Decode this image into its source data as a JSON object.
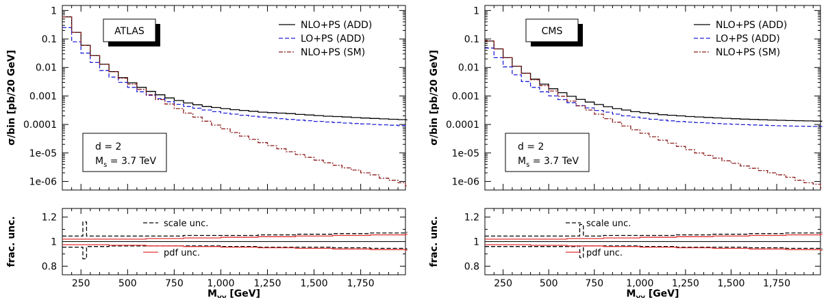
{
  "chart_data": [
    {
      "type": "line",
      "experiment": "ATLAS",
      "ylabel": "σ/bin [pb/20 GeV]",
      "yscale": "log",
      "ylim": [
        5e-07,
        1.5
      ],
      "xlim": [
        150,
        1990
      ],
      "grid": false,
      "legend_position": "top-right",
      "yticks": [
        "1",
        "0.1",
        "0.01",
        "0.001",
        "0.0001",
        "1e-05",
        "1e-06"
      ],
      "series": [
        {
          "name": "NLO+PS (ADD)",
          "color": "#000000",
          "style": "solid",
          "x": [
            150,
            200,
            250,
            300,
            350,
            400,
            450,
            500,
            550,
            600,
            650,
            700,
            750,
            800,
            850,
            900,
            950,
            1000,
            1050,
            1100,
            1150,
            1200,
            1250,
            1300,
            1350,
            1400,
            1450,
            1500,
            1550,
            1600,
            1650,
            1700,
            1750,
            1800,
            1850,
            1900,
            1950,
            1990
          ],
          "y": [
            0.6,
            0.17,
            0.06,
            0.026,
            0.013,
            0.0072,
            0.0044,
            0.0029,
            0.002,
            0.00145,
            0.0011,
            0.00085,
            0.00069,
            0.00057,
            0.00049,
            0.00043,
            0.00039,
            0.00036,
            0.00033,
            0.00031,
            0.00029,
            0.00027,
            0.00026,
            0.00025,
            0.00024,
            0.000225,
            0.000215,
            0.000205,
            0.000195,
            0.00019,
            0.000182,
            0.000175,
            0.000168,
            0.000162,
            0.000157,
            0.000152,
            0.000148,
            0.000145
          ]
        },
        {
          "name": "LO+PS (ADD)",
          "color": "#1f1fd6",
          "style": "dashed",
          "x": [
            150,
            200,
            250,
            300,
            350,
            400,
            450,
            500,
            550,
            600,
            650,
            700,
            750,
            800,
            850,
            900,
            950,
            1000,
            1050,
            1100,
            1150,
            1200,
            1250,
            1300,
            1350,
            1400,
            1450,
            1500,
            1550,
            1600,
            1650,
            1700,
            1750,
            1800,
            1850,
            1900,
            1950,
            1990
          ],
          "y": [
            0.25,
            0.08,
            0.032,
            0.015,
            0.0078,
            0.0046,
            0.003,
            0.002,
            0.0014,
            0.00105,
            0.0008,
            0.00063,
            0.00051,
            0.00043,
            0.00037,
            0.00032,
            0.00028,
            0.00025,
            0.00023,
            0.00021,
            0.000195,
            0.000182,
            0.00017,
            0.00016,
            0.00015,
            0.000142,
            0.000135,
            0.000128,
            0.000122,
            0.000117,
            0.000112,
            0.000108,
            0.000104,
            0.0001,
            9.7e-05,
            9.4e-05,
            9.1e-05,
            9e-05
          ]
        },
        {
          "name": "NLO+PS (SM)",
          "color": "#8b1a1a",
          "style": "dashdot",
          "x": [
            150,
            200,
            250,
            300,
            350,
            400,
            450,
            500,
            550,
            600,
            650,
            700,
            750,
            800,
            850,
            900,
            950,
            1000,
            1050,
            1100,
            1150,
            1200,
            1250,
            1300,
            1350,
            1400,
            1450,
            1500,
            1550,
            1600,
            1650,
            1700,
            1750,
            1800,
            1850,
            1900,
            1950,
            1990
          ],
          "y": [
            0.6,
            0.17,
            0.06,
            0.026,
            0.013,
            0.0071,
            0.0042,
            0.0026,
            0.0017,
            0.0011,
            0.00075,
            0.00052,
            0.00036,
            0.00025,
            0.00018,
            0.00013,
            9.5e-05,
            7e-05,
            5.2e-05,
            3.9e-05,
            3e-05,
            2.3e-05,
            1.8e-05,
            1.4e-05,
            1.1e-05,
            8.8e-06,
            7e-06,
            5.6e-06,
            4.5e-06,
            3.7e-06,
            3e-06,
            2.5e-06,
            2e-06,
            1.7e-06,
            1.3e-06,
            1.1e-06,
            9e-07,
            7e-07
          ]
        }
      ],
      "annotations": [
        {
          "text": "d = 2"
        },
        {
          "text": "M",
          "sub": "s",
          "after": " = 3.7 TeV"
        }
      ]
    },
    {
      "type": "line",
      "experiment": "CMS",
      "ylabel": "σ/bin [pb/20 GeV]",
      "yscale": "log",
      "ylim": [
        5e-07,
        1.5
      ],
      "xlim": [
        150,
        1990
      ],
      "grid": false,
      "legend_position": "top-right",
      "yticks": [
        "1",
        "0.1",
        "0.01",
        "0.001",
        "0.0001",
        "1e-05",
        "1e-06"
      ],
      "series": [
        {
          "name": "NLO+PS (ADD)",
          "color": "#000000",
          "style": "solid",
          "x": [
            150,
            200,
            250,
            300,
            350,
            400,
            450,
            500,
            550,
            600,
            650,
            700,
            750,
            800,
            850,
            900,
            950,
            1000,
            1050,
            1100,
            1150,
            1200,
            1250,
            1300,
            1350,
            1400,
            1450,
            1500,
            1550,
            1600,
            1650,
            1700,
            1750,
            1800,
            1850,
            1900,
            1950,
            1990
          ],
          "y": [
            0.085,
            0.045,
            0.022,
            0.011,
            0.0063,
            0.0039,
            0.0026,
            0.0018,
            0.0013,
            0.00097,
            0.00076,
            0.00061,
            0.0005,
            0.00042,
            0.00036,
            0.00032,
            0.00028,
            0.00026,
            0.00024,
            0.00022,
            0.00021,
            0.0002,
            0.00019,
            0.000183,
            0.000176,
            0.00017,
            0.000164,
            0.000159,
            0.000154,
            0.00015,
            0.000146,
            0.000143,
            0.00014,
            0.000137,
            0.000135,
            0.000133,
            0.000131,
            0.00013
          ]
        },
        {
          "name": "LO+PS (ADD)",
          "color": "#1f1fd6",
          "style": "dashed",
          "x": [
            150,
            200,
            250,
            300,
            350,
            400,
            450,
            500,
            550,
            600,
            650,
            700,
            750,
            800,
            850,
            900,
            950,
            1000,
            1050,
            1100,
            1150,
            1200,
            1250,
            1300,
            1350,
            1400,
            1450,
            1500,
            1550,
            1600,
            1650,
            1700,
            1750,
            1800,
            1850,
            1900,
            1950,
            1990
          ],
          "y": [
            0.048,
            0.022,
            0.0105,
            0.0055,
            0.0032,
            0.002,
            0.0014,
            0.001,
            0.00075,
            0.00058,
            0.00046,
            0.00038,
            0.00031,
            0.00027,
            0.00023,
            0.0002,
            0.00018,
            0.000165,
            0.000152,
            0.000142,
            0.000134,
            0.000127,
            0.000121,
            0.000116,
            0.000112,
            0.000108,
            0.000104,
            0.000101,
            9.8e-05,
            9.6e-05,
            9.4e-05,
            9.2e-05,
            9e-05,
            8.8e-05,
            8.7e-05,
            8.6e-05,
            8.5e-05,
            8.5e-05
          ]
        },
        {
          "name": "NLO+PS (SM)",
          "color": "#8b1a1a",
          "style": "dashdot",
          "x": [
            150,
            200,
            250,
            300,
            350,
            400,
            450,
            500,
            550,
            600,
            650,
            700,
            750,
            800,
            850,
            900,
            950,
            1000,
            1050,
            1100,
            1150,
            1200,
            1250,
            1300,
            1350,
            1400,
            1450,
            1500,
            1550,
            1600,
            1650,
            1700,
            1750,
            1800,
            1850,
            1900,
            1950,
            1990
          ],
          "y": [
            0.085,
            0.045,
            0.022,
            0.011,
            0.0062,
            0.0037,
            0.0023,
            0.0015,
            0.00098,
            0.00066,
            0.00045,
            0.00032,
            0.00023,
            0.00016,
            0.00012,
            8.8e-05,
            6.5e-05,
            4.9e-05,
            3.7e-05,
            2.8e-05,
            2.2e-05,
            1.7e-05,
            1.3e-05,
            1e-05,
            8.2e-06,
            6.6e-06,
            5.3e-06,
            4.3e-06,
            3.5e-06,
            2.9e-06,
            2.4e-06,
            2e-06,
            1.7e-06,
            1.4e-06,
            1.1e-06,
            9e-07,
            8e-07,
            6e-07
          ]
        }
      ],
      "annotations": [
        {
          "text": "d = 2"
        },
        {
          "text": "M",
          "sub": "s",
          "after": " = 3.7 TeV"
        }
      ]
    },
    {
      "type": "line",
      "experiment": "ATLAS",
      "role": "ratio",
      "ylabel": "frac. unc.",
      "xlabel": "M",
      "xlabel_sub": "γγ",
      "xlabel_unit": " [GeV]",
      "ylim": [
        0.73,
        1.27
      ],
      "xlim": [
        150,
        1990
      ],
      "yticks": [
        0.8,
        1,
        1.2
      ],
      "xticks": [
        250,
        500,
        750,
        1000,
        1250,
        1500,
        1750
      ],
      "xtick_labels": [
        "250",
        "500",
        "750",
        "1,000",
        "1,250",
        "1,500",
        "1,750"
      ],
      "series": [
        {
          "name": "scale unc.",
          "color": "#000000",
          "style": "dashed",
          "x": [
            150,
            250,
            260,
            280,
            400,
            600,
            800,
            1000,
            1200,
            1400,
            1600,
            1800,
            1990
          ],
          "upper": [
            1.045,
            1.045,
            1.16,
            1.045,
            1.045,
            1.045,
            1.05,
            1.05,
            1.055,
            1.06,
            1.065,
            1.07,
            1.075
          ],
          "lower": [
            0.955,
            0.955,
            0.86,
            0.96,
            0.965,
            0.965,
            0.965,
            0.96,
            0.955,
            0.955,
            0.95,
            0.945,
            0.94
          ]
        },
        {
          "name": "pdf unc.",
          "color": "#e03030",
          "style": "solid",
          "x": [
            150,
            400,
            600,
            800,
            1000,
            1200,
            1400,
            1600,
            1800,
            1990
          ],
          "upper": [
            1.02,
            1.02,
            1.025,
            1.03,
            1.035,
            1.04,
            1.045,
            1.05,
            1.055,
            1.06
          ],
          "lower": [
            0.975,
            0.97,
            0.965,
            0.96,
            0.955,
            0.95,
            0.945,
            0.94,
            0.935,
            0.93
          ]
        }
      ]
    },
    {
      "type": "line",
      "experiment": "CMS",
      "role": "ratio",
      "ylabel": "frac. unc.",
      "xlabel": "M",
      "xlabel_sub": "γγ",
      "xlabel_unit": " [GeV]",
      "ylim": [
        0.73,
        1.27
      ],
      "xlim": [
        150,
        1990
      ],
      "yticks": [
        0.8,
        1,
        1.2
      ],
      "xticks": [
        250,
        500,
        750,
        1000,
        1250,
        1500,
        1750
      ],
      "xtick_labels": [
        "250",
        "500",
        "750",
        "1,000",
        "1,250",
        "1,500",
        "1,750"
      ],
      "series": [
        {
          "name": "scale unc.",
          "color": "#000000",
          "style": "dashed",
          "x": [
            150,
            400,
            660,
            670,
            690,
            800,
            1000,
            1200,
            1400,
            1600,
            1800,
            1990
          ],
          "upper": [
            1.045,
            1.045,
            1.045,
            1.14,
            1.045,
            1.05,
            1.05,
            1.055,
            1.06,
            1.065,
            1.07,
            1.075
          ],
          "lower": [
            0.96,
            0.96,
            0.965,
            0.87,
            0.965,
            0.965,
            0.96,
            0.955,
            0.955,
            0.95,
            0.945,
            0.94
          ]
        },
        {
          "name": "pdf unc.",
          "color": "#e03030",
          "style": "solid",
          "x": [
            150,
            400,
            600,
            800,
            1000,
            1200,
            1400,
            1600,
            1800,
            1990
          ],
          "upper": [
            1.02,
            1.02,
            1.025,
            1.03,
            1.035,
            1.04,
            1.045,
            1.05,
            1.055,
            1.06
          ],
          "lower": [
            0.975,
            0.97,
            0.965,
            0.96,
            0.955,
            0.95,
            0.945,
            0.94,
            0.935,
            0.93
          ]
        }
      ]
    }
  ]
}
